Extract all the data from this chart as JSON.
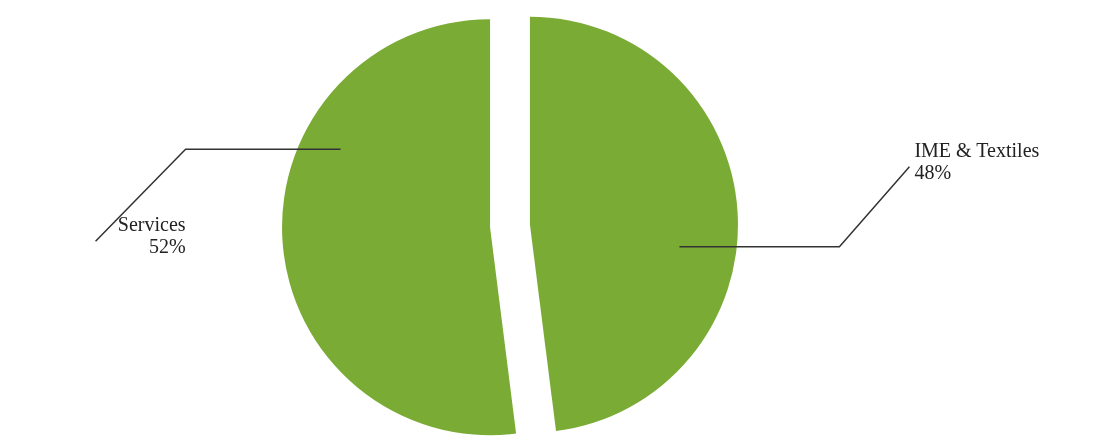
{
  "chart_data": {
    "type": "pie",
    "categories": [
      "IME & Textiles",
      "Services"
    ],
    "values": [
      48,
      52
    ],
    "value_labels": [
      "48%",
      "52%"
    ],
    "colors": [
      "#7aab35",
      "#7aab35"
    ]
  }
}
